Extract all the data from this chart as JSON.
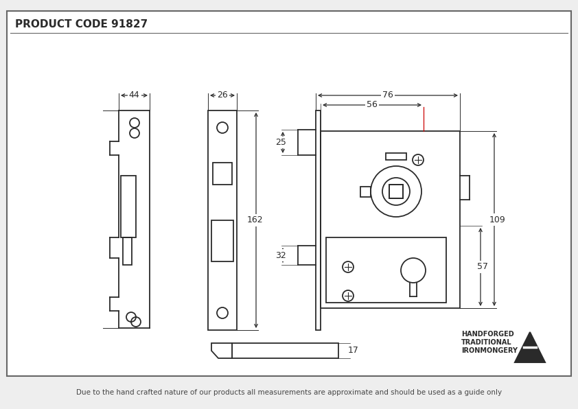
{
  "title": "PRODUCT CODE 91827",
  "footer": "Due to the hand crafted nature of our products all measurements are approximate and should be used as a guide only",
  "bg_color": "#eeeeee",
  "drawing_bg": "#ffffff",
  "line_color": "#2a2a2a",
  "red_color": "#cc0000",
  "brand_text": [
    "HANDFORGED",
    "TRADITIONAL",
    "IRONMONGERY"
  ],
  "border_color": "#666666"
}
